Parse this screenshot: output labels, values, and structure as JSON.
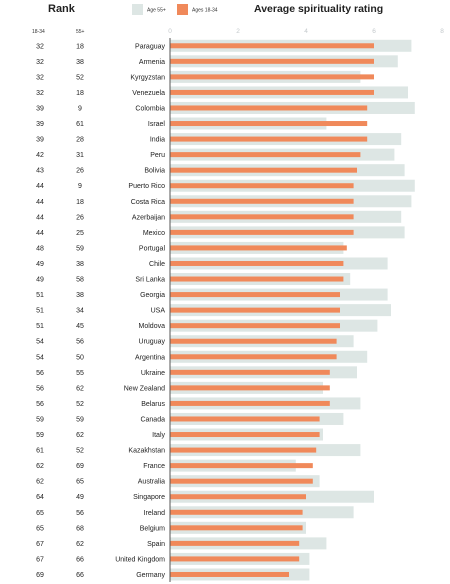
{
  "header": {
    "rank_title": "Rank",
    "col_young": "18-34",
    "col_old": "55+",
    "chart_title": "Average spirituality rating"
  },
  "legend": [
    {
      "label": "Age 55+",
      "color": "#dde6e4"
    },
    {
      "label": "Ages 18-34",
      "color": "#f0895a"
    }
  ],
  "colors": {
    "old": "#dde6e4",
    "young": "#f0895a",
    "axis": "#555555",
    "tick": "#c3c8cb"
  },
  "chart_data": {
    "type": "bar",
    "orientation": "horizontal",
    "title": "Average spirituality rating",
    "xlim": [
      0,
      8
    ],
    "xticks": [
      0,
      2,
      4,
      6,
      8
    ],
    "grid": false,
    "legend_position": "top",
    "categories": [
      "Paraguay",
      "Armenia",
      "Kyrgyzstan",
      "Venezuela",
      "Colombia",
      "Israel",
      "India",
      "Peru",
      "Bolivia",
      "Puerto Rico",
      "Costa Rica",
      "Azerbaijan",
      "Mexico",
      "Portugal",
      "Chile",
      "Sri Lanka",
      "Georgia",
      "USA",
      "Moldova",
      "Uruguay",
      "Argentina",
      "Ukraine",
      "New Zealand",
      "Belarus",
      "Canada",
      "Italy",
      "Kazakhstan",
      "France",
      "Australia",
      "Singapore",
      "Ireland",
      "Belgium",
      "Spain",
      "United Kingdom",
      "Germany"
    ],
    "rank_18_34": [
      32,
      32,
      32,
      32,
      39,
      39,
      39,
      42,
      43,
      44,
      44,
      44,
      44,
      48,
      49,
      49,
      51,
      51,
      51,
      54,
      54,
      56,
      56,
      56,
      59,
      59,
      61,
      62,
      62,
      64,
      65,
      65,
      67,
      67,
      69
    ],
    "rank_55_plus": [
      18,
      38,
      52,
      18,
      9,
      61,
      28,
      31,
      26,
      9,
      18,
      26,
      25,
      59,
      38,
      58,
      38,
      34,
      45,
      56,
      50,
      55,
      62,
      52,
      59,
      62,
      52,
      69,
      65,
      49,
      56,
      68,
      62,
      66,
      66
    ],
    "series": [
      {
        "name": "Age 55+",
        "values": [
          7.1,
          6.7,
          5.6,
          7.0,
          7.2,
          4.6,
          6.8,
          6.6,
          6.9,
          7.2,
          7.1,
          6.8,
          6.9,
          5.1,
          6.4,
          5.3,
          6.4,
          6.5,
          6.1,
          5.4,
          5.8,
          5.5,
          4.5,
          5.6,
          5.1,
          4.5,
          5.6,
          3.7,
          4.4,
          6.0,
          5.4,
          4.0,
          4.6,
          4.1,
          4.1
        ]
      },
      {
        "name": "Ages 18-34",
        "values": [
          6.0,
          6.0,
          6.0,
          6.0,
          5.8,
          5.8,
          5.8,
          5.6,
          5.5,
          5.4,
          5.4,
          5.4,
          5.4,
          5.2,
          5.1,
          5.1,
          5.0,
          5.0,
          5.0,
          4.9,
          4.9,
          4.7,
          4.7,
          4.7,
          4.4,
          4.4,
          4.3,
          4.2,
          4.2,
          4.0,
          3.9,
          3.9,
          3.8,
          3.8,
          3.5
        ]
      }
    ]
  }
}
